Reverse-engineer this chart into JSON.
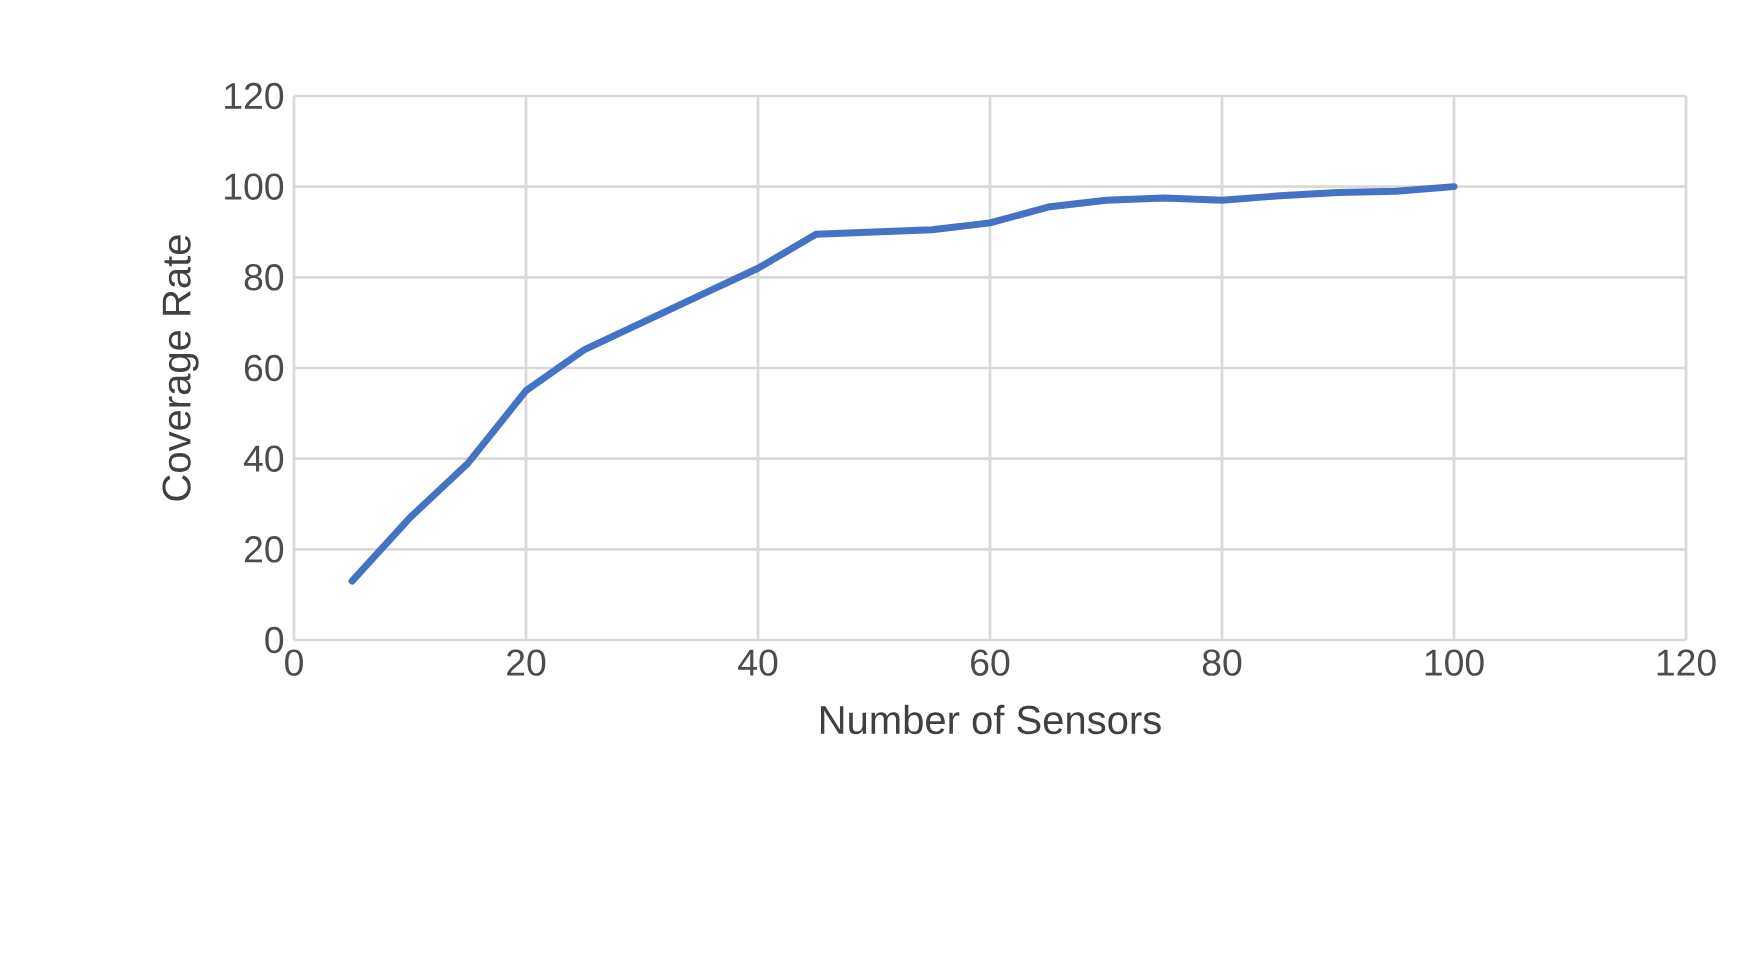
{
  "chart_data": {
    "type": "line",
    "xlabel": "Number of Sensors",
    "ylabel": "Coverage Rate",
    "x": [
      5,
      10,
      15,
      20,
      25,
      30,
      35,
      40,
      45,
      50,
      55,
      60,
      65,
      70,
      75,
      80,
      85,
      90,
      95,
      100
    ],
    "series": [
      {
        "color": "#4472c4",
        "values": [
          13,
          27,
          39,
          55,
          64,
          70,
          76,
          82,
          89.5,
          90,
          90.5,
          92,
          95.5,
          97,
          97.5,
          97,
          98,
          98.7,
          99,
          100
        ]
      }
    ],
    "xlim": [
      0,
      120
    ],
    "ylim": [
      0,
      120
    ],
    "xticks": [
      0,
      20,
      40,
      60,
      80,
      100,
      120
    ],
    "yticks": [
      0,
      20,
      40,
      60,
      80,
      100,
      120
    ],
    "grid": true,
    "marker": "none",
    "line_style": "solid"
  }
}
